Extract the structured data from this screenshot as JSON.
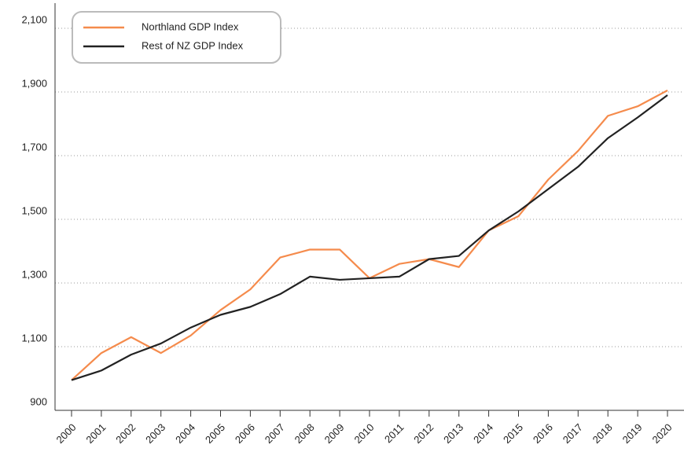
{
  "chart_data": {
    "type": "line",
    "categories": [
      "2000",
      "2001",
      "2002",
      "2003",
      "2004",
      "2005",
      "2006",
      "2007",
      "2008",
      "2009",
      "2010",
      "2011",
      "2012",
      "2013",
      "2014",
      "2015",
      "2016",
      "2017",
      "2018",
      "2019",
      "2020"
    ],
    "series": [
      {
        "name": "Northland GDP Index",
        "color": "#f58b4c",
        "values": [
          995,
          1080,
          1130,
          1080,
          1135,
          1215,
          1280,
          1380,
          1405,
          1405,
          1315,
          1360,
          1375,
          1350,
          1465,
          1510,
          1625,
          1715,
          1825,
          1855,
          1905
        ]
      },
      {
        "name": "Rest of NZ GDP Index",
        "color": "#222222",
        "values": [
          995,
          1025,
          1075,
          1110,
          1160,
          1200,
          1225,
          1265,
          1320,
          1310,
          1315,
          1320,
          1375,
          1385,
          1465,
          1525,
          1595,
          1665,
          1755,
          1820,
          1890
        ]
      }
    ],
    "ylim": [
      900,
      2100
    ],
    "yticks": [
      900,
      {
        "value": 1100,
        "label": "1,100"
      },
      {
        "value": 1300,
        "label": "1,300"
      },
      {
        "value": 1500,
        "label": "1,500"
      },
      {
        "value": 1700,
        "label": "1,700"
      },
      {
        "value": 1900,
        "label": "1,900"
      },
      {
        "value": 2100,
        "label": "2,100"
      }
    ],
    "grid": true,
    "legend": "upper left"
  }
}
